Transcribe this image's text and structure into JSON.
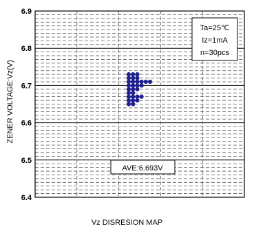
{
  "chart_data": {
    "type": "scatter",
    "title": "",
    "xlabel": "",
    "ylabel": "ZENER VOLTAGE:Vz(V)",
    "ylim": [
      6.4,
      6.9
    ],
    "y_ticks": [
      "6.4",
      "6.5",
      "6.6",
      "6.7",
      "6.8",
      "6.9"
    ],
    "x_ticks": [],
    "grid": true,
    "conditions": [
      "Ta=25℃",
      "Iz=1mA",
      "n=30pcs"
    ],
    "average_label": "AVE:6.693V",
    "caption": "Vz DISRESION MAP",
    "series": [
      {
        "color": "#1f1f8f",
        "points": [
          {
            "col": 0,
            "y": 6.65
          },
          {
            "col": 0,
            "y": 6.66
          },
          {
            "col": 0,
            "y": 6.67
          },
          {
            "col": 0,
            "y": 6.68
          },
          {
            "col": 0,
            "y": 6.69
          },
          {
            "col": 0,
            "y": 6.7
          },
          {
            "col": 0,
            "y": 6.71
          },
          {
            "col": 0,
            "y": 6.72
          },
          {
            "col": 0,
            "y": 6.73
          },
          {
            "col": 1,
            "y": 6.65
          },
          {
            "col": 1,
            "y": 6.66
          },
          {
            "col": 1,
            "y": 6.67
          },
          {
            "col": 1,
            "y": 6.68
          },
          {
            "col": 1,
            "y": 6.69
          },
          {
            "col": 1,
            "y": 6.7
          },
          {
            "col": 1,
            "y": 6.71
          },
          {
            "col": 1,
            "y": 6.72
          },
          {
            "col": 1,
            "y": 6.73
          },
          {
            "col": 2,
            "y": 6.67
          },
          {
            "col": 2,
            "y": 6.69
          },
          {
            "col": 2,
            "y": 6.7
          },
          {
            "col": 2,
            "y": 6.71
          },
          {
            "col": 2,
            "y": 6.72
          },
          {
            "col": 2,
            "y": 6.73
          },
          {
            "col": 3,
            "y": 6.67
          },
          {
            "col": 3,
            "y": 6.7
          },
          {
            "col": 3,
            "y": 6.71
          },
          {
            "col": 4,
            "y": 6.71
          },
          {
            "col": 5,
            "y": 6.71
          },
          {
            "col": 2,
            "y": 6.66
          }
        ]
      }
    ]
  }
}
